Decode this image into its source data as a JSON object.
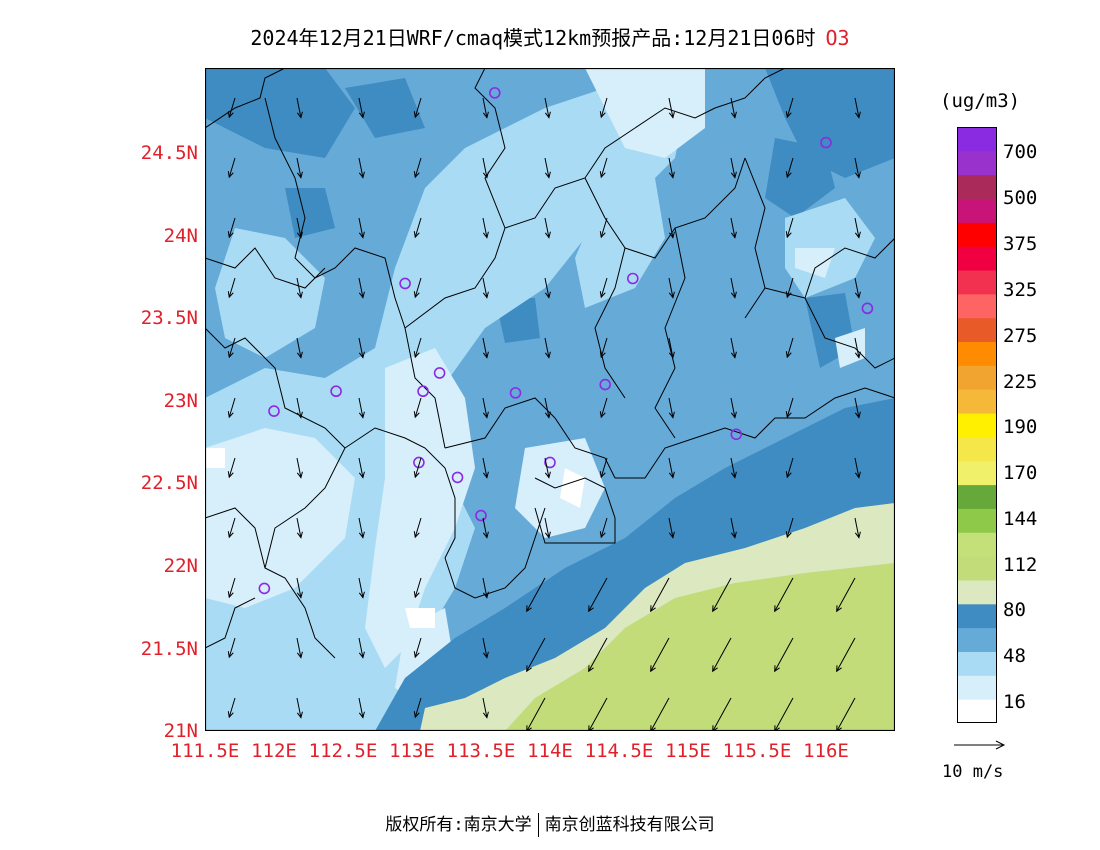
{
  "title": {
    "main": "2024年12月21日WRF/cmaq模式12km预报产品:12月21日06时",
    "species": "O3"
  },
  "axes": {
    "y_ticks": [
      "24.5N",
      "24N",
      "23.5N",
      "23N",
      "22.5N",
      "22N",
      "21.5N",
      "21N"
    ],
    "x_ticks": [
      "111.5E",
      "112E",
      "112.5E",
      "113E",
      "113.5E",
      "114E",
      "114.5E",
      "115E",
      "115.5E",
      "116E"
    ]
  },
  "map": {
    "lon_range": [
      111.5,
      116.5
    ],
    "lat_range": [
      21.0,
      25.0
    ],
    "marker_color": "#8a2be2",
    "station_markers": [
      {
        "lon": 113.6,
        "lat": 24.85
      },
      {
        "lon": 116.0,
        "lat": 24.55
      },
      {
        "lon": 114.6,
        "lat": 23.73
      },
      {
        "lon": 116.3,
        "lat": 23.55
      },
      {
        "lon": 112.95,
        "lat": 23.7
      },
      {
        "lon": 112.45,
        "lat": 23.05
      },
      {
        "lon": 112.0,
        "lat": 22.93
      },
      {
        "lon": 113.08,
        "lat": 23.05
      },
      {
        "lon": 113.2,
        "lat": 23.16
      },
      {
        "lon": 113.75,
        "lat": 23.04
      },
      {
        "lon": 114.4,
        "lat": 23.09
      },
      {
        "lon": 115.35,
        "lat": 22.79
      },
      {
        "lon": 113.05,
        "lat": 22.62
      },
      {
        "lon": 113.33,
        "lat": 22.53
      },
      {
        "lon": 114.0,
        "lat": 22.62
      },
      {
        "lon": 113.5,
        "lat": 22.3
      },
      {
        "lon": 111.93,
        "lat": 21.86
      }
    ]
  },
  "colorbar": {
    "unit": "(ug/m3)",
    "colors": [
      "#ffffff",
      "#d7eefb",
      "#a9dcf4",
      "#66aad8",
      "#3f8cc2",
      "#dce9c0",
      "#c2dc7a",
      "#c4e179",
      "#8fc94a",
      "#66a93a",
      "#f0f06a",
      "#f5e64a",
      "#fff000",
      "#f5b838",
      "#f2a430",
      "#ff8c00",
      "#e85a28",
      "#ff6464",
      "#f23050",
      "#f00040",
      "#ff0000",
      "#c81478",
      "#aa2a5a",
      "#9932cc",
      "#8a2be2"
    ],
    "labels": [
      "16",
      "48",
      "80",
      "112",
      "144",
      "170",
      "190",
      "225",
      "275",
      "325",
      "375",
      "500",
      "700"
    ]
  },
  "reference_vector": {
    "label": "10 m/s"
  },
  "copyright": {
    "left": "版权所有:南京大学",
    "right": "南京创蓝科技有限公司"
  }
}
